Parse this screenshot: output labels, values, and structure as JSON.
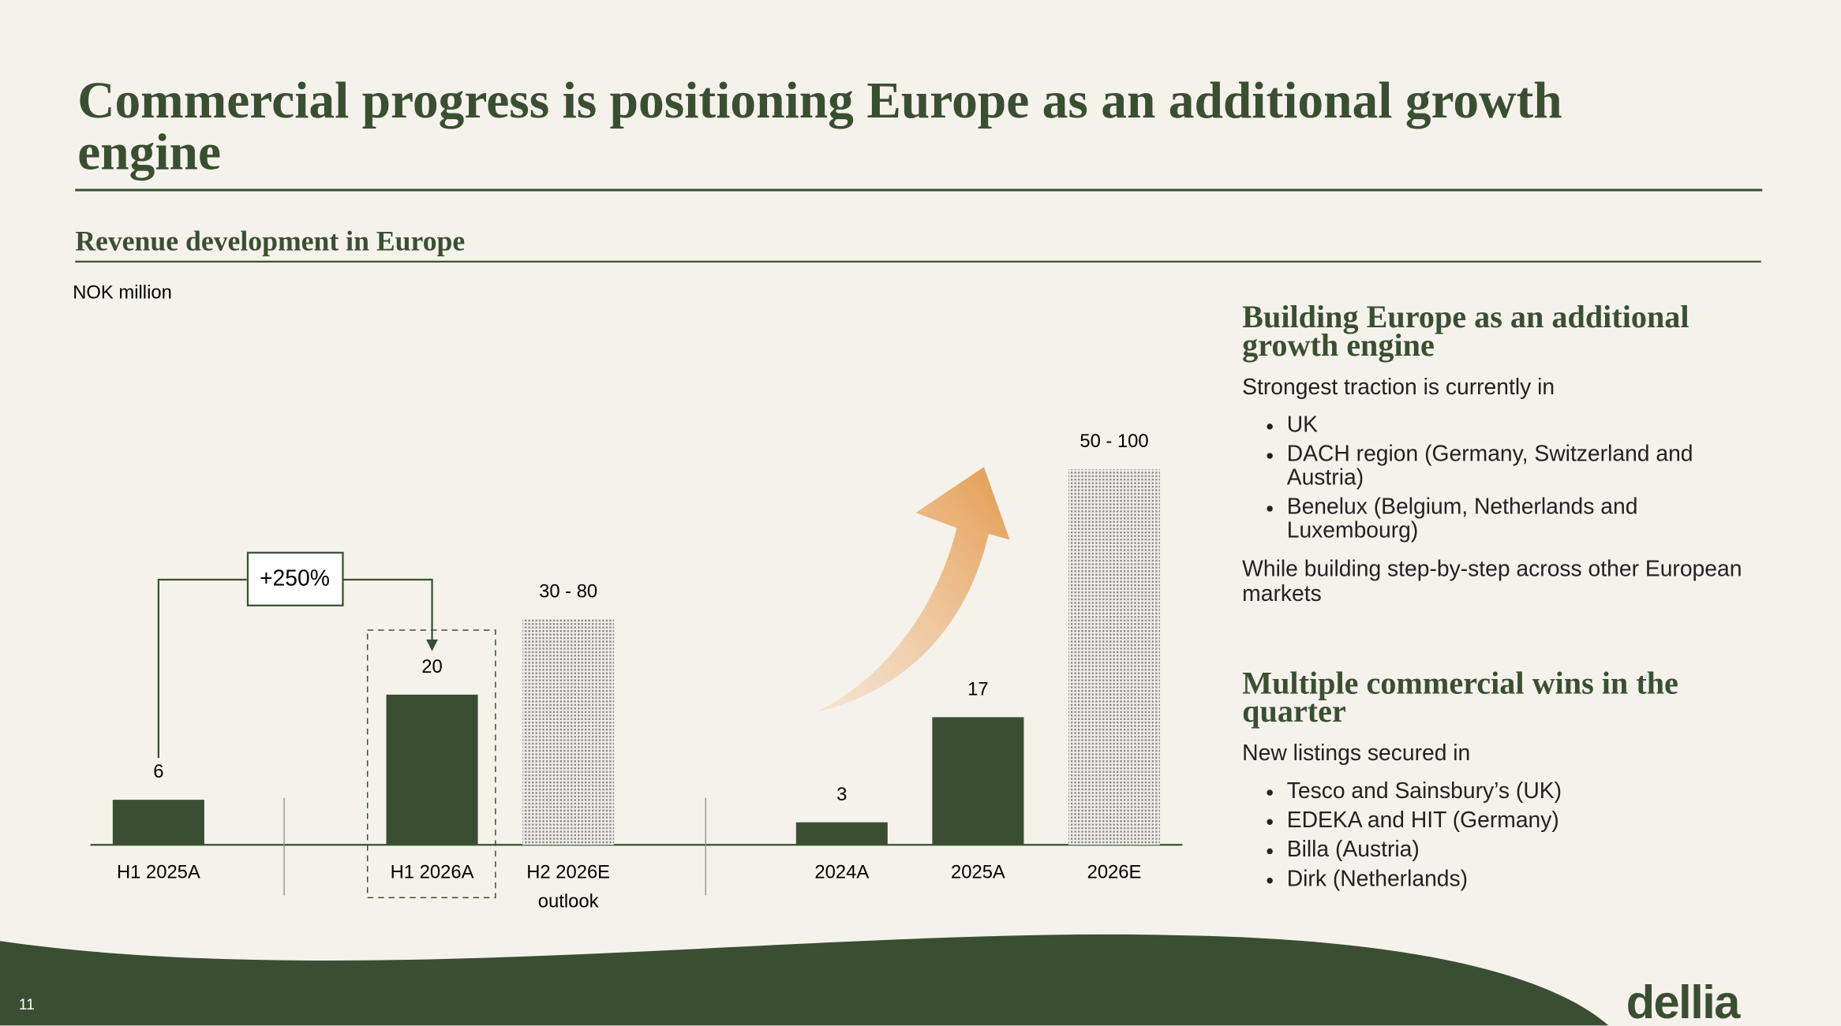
{
  "header": {
    "title_lines": [
      "Commercial progress is positioning Europe as an additional growth",
      "engine"
    ]
  },
  "chart_data": {
    "type": "bar",
    "title": "Revenue development in Europe",
    "unit_label": "NOK million",
    "categories": [
      "H1 2025A",
      "H1 2026A",
      "H2 2026E",
      "2024A",
      "2025A",
      "2026E"
    ],
    "category_sublabels": [
      null,
      null,
      "outlook",
      null,
      null,
      null
    ],
    "values": [
      6,
      20,
      30,
      3,
      17,
      50
    ],
    "highs": [
      null,
      null,
      80,
      null,
      null,
      100
    ],
    "value_labels": [
      "6",
      "20",
      "30 - 80",
      "3",
      "17",
      "50 - 100"
    ],
    "hatched": [
      false,
      false,
      true,
      false,
      false,
      true
    ],
    "color": "#3a4f32",
    "annotation": "+250%"
  },
  "panels": [
    {
      "heading": "Building Europe as an additional growth engine",
      "intro": "Strongest traction is currently in",
      "bullets": [
        "UK",
        "DACH region (Germany, Switzerland and Austria)",
        "Benelux (Belgium, Netherlands and Luxembourg)"
      ],
      "outro": "While building step-by-step across other European markets"
    },
    {
      "heading": "Multiple commercial wins in the quarter",
      "intro": "New listings secured in",
      "bullets": [
        "Tesco and Sainsbury’s (UK)",
        "EDEKA and HIT (Germany)",
        "Billa (Austria)",
        "Dirk (Netherlands)"
      ],
      "outro": null
    }
  ],
  "footer": {
    "page": "11",
    "logo": "dellia"
  }
}
